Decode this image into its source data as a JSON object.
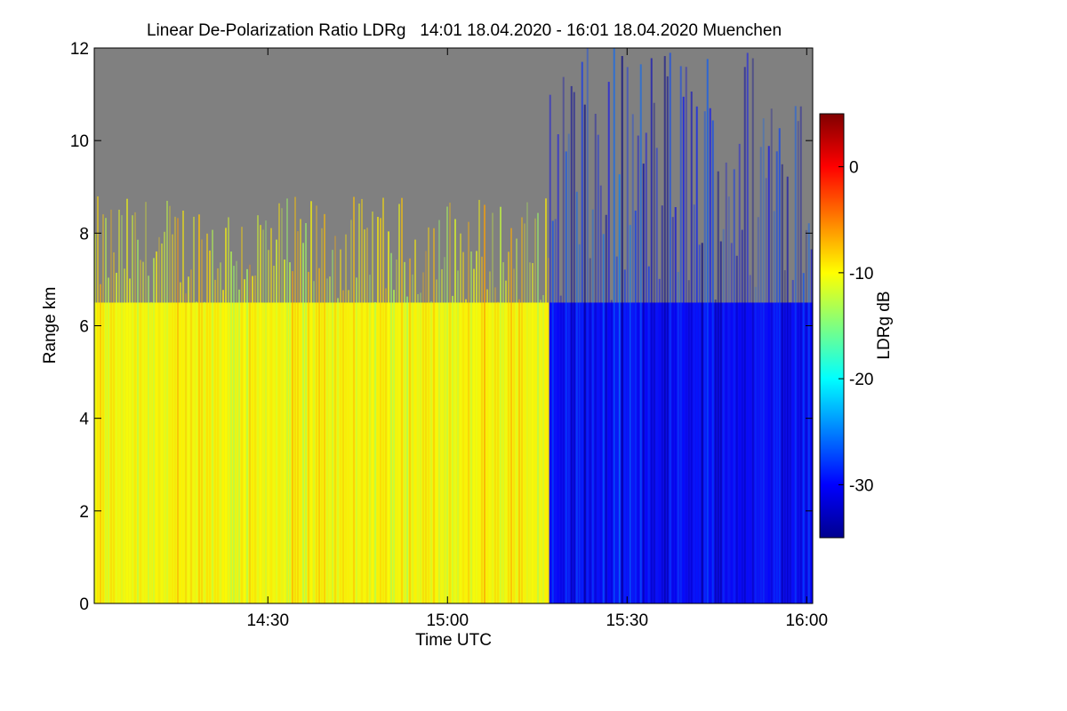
{
  "chart_data": {
    "type": "heatmap",
    "title": "Linear De-Polarization Ratio LDRg   14:01 18.04.2020 - 16:01 18.04.2020 Muenchen",
    "xlabel": "Time UTC",
    "ylabel": "Range km",
    "x_range": [
      "14:01",
      "16:01"
    ],
    "x_ticks": [
      "14:30",
      "15:00",
      "15:30",
      "16:00"
    ],
    "ylim": [
      0,
      12
    ],
    "y_ticks": [
      0,
      2,
      4,
      6,
      8,
      10,
      12
    ],
    "colorbar": {
      "label": "LDRg dB",
      "range": [
        -35,
        5
      ],
      "ticks": [
        0,
        -10,
        -20,
        -30
      ],
      "colormap": "jet"
    },
    "no_signal_color": "#808080",
    "regions": [
      {
        "time_start": "14:01",
        "time_end": "15:17",
        "range_top_km": 6.5,
        "ldr_db": -10,
        "description_color": "yellow"
      },
      {
        "time_start": "15:17",
        "time_end": "16:01",
        "range_top_km": 6.5,
        "ldr_db": -30,
        "description_color": "blue"
      }
    ]
  }
}
